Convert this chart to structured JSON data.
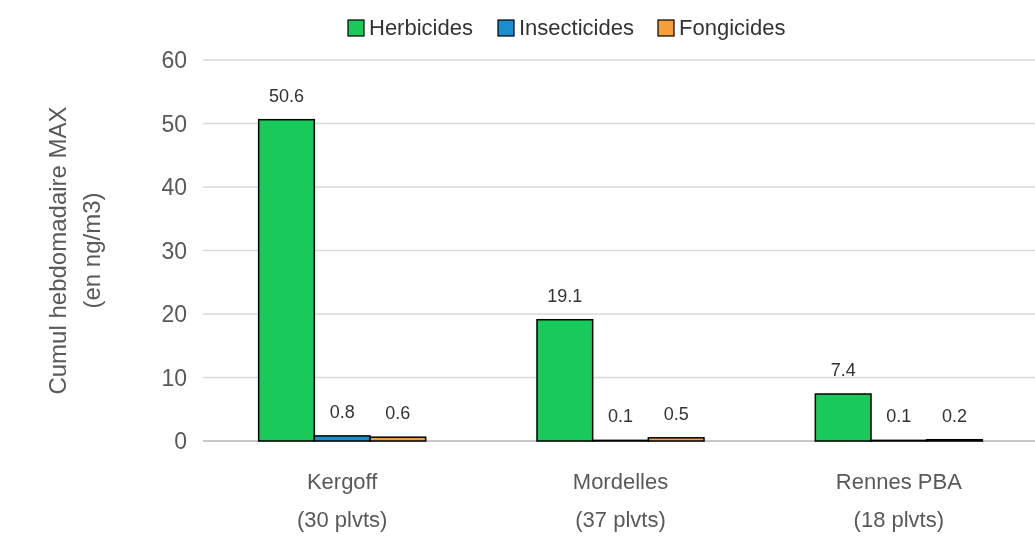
{
  "chart_data": {
    "type": "bar",
    "ylabel": "Cumul hebdomadaire MAX\n(en ng/m3)",
    "categories": [
      "Kergoff\n(30 plvts)",
      "Mordelles\n(37 plvts)",
      "Rennes PBA\n(18 plvts)"
    ],
    "series": [
      {
        "name": "Herbicides",
        "color": "#19c95a",
        "values": [
          50.6,
          19.1,
          7.4
        ]
      },
      {
        "name": "Insecticides",
        "color": "#1a8ecf",
        "values": [
          0.8,
          0.1,
          0.1
        ]
      },
      {
        "name": "Fongicides",
        "color": "#f5a03c",
        "values": [
          0.6,
          0.5,
          0.2
        ]
      }
    ],
    "ylim": [
      0,
      60
    ],
    "yticks": [
      0,
      10,
      20,
      30,
      40,
      50,
      60
    ],
    "grid": "y",
    "legend": "top",
    "data_labels": true
  }
}
